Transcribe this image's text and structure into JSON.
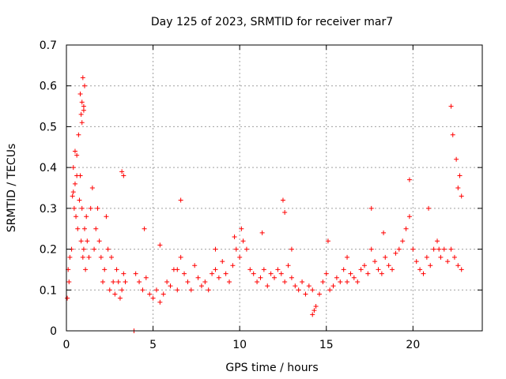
{
  "chart_data": {
    "type": "scatter",
    "title": "Day 125 of 2023, SRMTID for receiver mar7",
    "xlabel": "GPS time / hours",
    "ylabel": "SRMTID / TECUs",
    "xlim": [
      0,
      24
    ],
    "ylim": [
      0,
      0.7
    ],
    "xticks": [
      0,
      5,
      10,
      15,
      20
    ],
    "xtick_labels": [
      "0",
      "5",
      "10",
      "15",
      "20"
    ],
    "yticks": [
      0,
      0.1,
      0.2,
      0.3,
      0.4,
      0.5,
      0.6,
      0.7
    ],
    "ytick_labels": [
      "0",
      "0.1",
      "0.2",
      "0.3",
      "0.4",
      "0.5",
      "0.6",
      "0.7"
    ],
    "grid": true,
    "marker": "+",
    "color": "#ff0000",
    "series": [
      {
        "name": "SRMTID",
        "x": [
          0.05,
          0.1,
          0.15,
          0.2,
          0.3,
          0.35,
          0.4,
          0.45,
          0.5,
          0.55,
          0.6,
          0.65,
          0.7,
          0.75,
          0.8,
          0.85,
          0.9,
          0.95,
          1.0,
          1.05,
          1.1,
          1.15,
          1.2,
          1.3,
          1.4,
          1.5,
          1.6,
          1.7,
          1.8,
          1.9,
          2.0,
          2.1,
          2.2,
          2.3,
          2.4,
          2.5,
          2.6,
          2.7,
          2.8,
          2.9,
          3.0,
          3.1,
          3.2,
          3.3,
          3.4,
          0.9,
          1.0,
          0.95,
          0.85,
          1.05,
          0.8,
          0.9,
          1.0,
          0.6,
          0.5,
          0.4,
          3.2,
          3.3,
          3.9,
          4.0,
          4.2,
          4.4,
          4.6,
          4.8,
          5.0,
          5.2,
          5.4,
          5.6,
          5.8,
          6.0,
          6.2,
          6.4,
          6.6,
          6.8,
          7.0,
          7.2,
          7.4,
          7.6,
          7.8,
          8.0,
          8.2,
          8.4,
          8.6,
          8.8,
          9.0,
          9.2,
          9.4,
          9.6,
          9.8,
          10.0,
          10.2,
          10.4,
          10.6,
          10.8,
          11.0,
          11.2,
          11.4,
          11.6,
          11.8,
          12.0,
          12.2,
          12.4,
          12.6,
          12.8,
          13.0,
          13.2,
          13.4,
          13.6,
          13.8,
          14.0,
          14.2,
          14.4,
          14.6,
          14.8,
          15.0,
          15.2,
          15.4,
          15.6,
          15.8,
          16.0,
          16.2,
          16.4,
          16.6,
          16.8,
          17.0,
          17.2,
          17.4,
          17.6,
          17.8,
          18.0,
          18.2,
          18.4,
          18.6,
          18.8,
          19.0,
          19.2,
          19.4,
          19.6,
          19.8,
          20.0,
          20.2,
          20.4,
          20.6,
          20.8,
          21.0,
          21.2,
          21.4,
          21.6,
          21.8,
          22.0,
          22.2,
          22.4,
          22.6,
          22.8,
          6.6,
          12.5,
          12.6,
          17.6,
          19.8,
          20.9,
          22.2,
          22.3,
          22.5,
          22.7,
          22.6,
          22.8,
          14.2,
          14.3,
          15.1,
          4.5,
          5.4,
          6.4,
          8.6,
          9.7,
          10.1,
          11.3,
          13.0,
          16.2,
          18.3,
          21.5
        ],
        "y": [
          0.08,
          0.15,
          0.12,
          0.18,
          0.2,
          0.33,
          0.4,
          0.3,
          0.36,
          0.28,
          0.43,
          0.25,
          0.48,
          0.32,
          0.38,
          0.22,
          0.3,
          0.18,
          0.2,
          0.25,
          0.15,
          0.28,
          0.22,
          0.18,
          0.3,
          0.35,
          0.2,
          0.25,
          0.3,
          0.22,
          0.18,
          0.12,
          0.15,
          0.28,
          0.2,
          0.1,
          0.18,
          0.12,
          0.09,
          0.15,
          0.12,
          0.08,
          0.1,
          0.14,
          0.12,
          0.56,
          0.55,
          0.62,
          0.53,
          0.6,
          0.58,
          0.51,
          0.54,
          0.38,
          0.44,
          0.34,
          0.39,
          0.38,
          0.0,
          0.14,
          0.12,
          0.1,
          0.13,
          0.09,
          0.08,
          0.1,
          0.07,
          0.09,
          0.12,
          0.11,
          0.15,
          0.1,
          0.18,
          0.14,
          0.12,
          0.1,
          0.16,
          0.13,
          0.11,
          0.12,
          0.1,
          0.14,
          0.15,
          0.13,
          0.17,
          0.14,
          0.12,
          0.16,
          0.2,
          0.18,
          0.22,
          0.2,
          0.15,
          0.14,
          0.12,
          0.13,
          0.15,
          0.11,
          0.14,
          0.13,
          0.15,
          0.14,
          0.12,
          0.16,
          0.13,
          0.11,
          0.1,
          0.12,
          0.09,
          0.11,
          0.1,
          0.06,
          0.09,
          0.12,
          0.14,
          0.1,
          0.11,
          0.13,
          0.12,
          0.15,
          0.12,
          0.14,
          0.13,
          0.12,
          0.15,
          0.16,
          0.14,
          0.2,
          0.17,
          0.15,
          0.14,
          0.18,
          0.16,
          0.15,
          0.19,
          0.2,
          0.22,
          0.25,
          0.28,
          0.2,
          0.17,
          0.15,
          0.14,
          0.18,
          0.16,
          0.2,
          0.22,
          0.18,
          0.2,
          0.17,
          0.2,
          0.18,
          0.16,
          0.15,
          0.32,
          0.32,
          0.29,
          0.3,
          0.37,
          0.3,
          0.55,
          0.48,
          0.42,
          0.38,
          0.35,
          0.33,
          0.04,
          0.05,
          0.22,
          0.25,
          0.21,
          0.15,
          0.2,
          0.23,
          0.25,
          0.24,
          0.2,
          0.18,
          0.24,
          0.2
        ]
      }
    ]
  }
}
